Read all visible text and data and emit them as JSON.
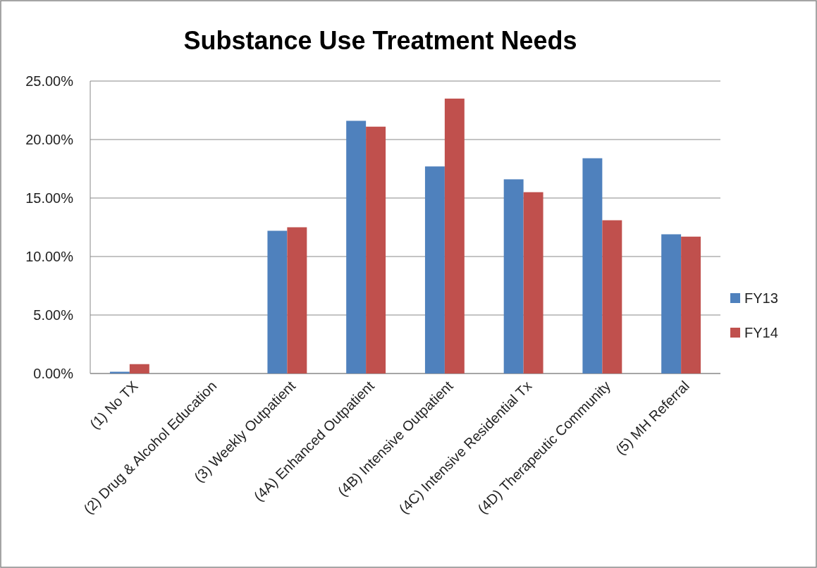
{
  "chart_data": {
    "type": "bar",
    "title": "Substance Use Treatment Needs",
    "categories": [
      "(1) No TX",
      "(2) Drug & Alcohol Education",
      "(3) Weekly Outpatient",
      "(4A) Enhanced Outpatient",
      "(4B) Intensive Outpatient",
      "(4C) Intensive Residential Tx",
      "(4D) Therapeutic Community",
      "(5) MH Referral"
    ],
    "series": [
      {
        "name": "FY13",
        "color": "#4f81bd",
        "values": [
          0.15,
          0,
          12.2,
          21.6,
          17.7,
          16.6,
          18.4,
          11.9
        ]
      },
      {
        "name": "FY14",
        "color": "#c0504d",
        "values": [
          0.8,
          0,
          12.5,
          21.1,
          23.5,
          15.5,
          13.1,
          11.7
        ]
      }
    ],
    "ylim": [
      0,
      25
    ],
    "yticks": [
      {
        "value": 0,
        "label": "0.00%"
      },
      {
        "value": 5,
        "label": "5.00%"
      },
      {
        "value": 10,
        "label": "10.00%"
      },
      {
        "value": 15,
        "label": "15.00%"
      },
      {
        "value": 20,
        "label": "20.00%"
      },
      {
        "value": 25,
        "label": "25.00%"
      }
    ],
    "grid": "y",
    "legend": "right"
  }
}
